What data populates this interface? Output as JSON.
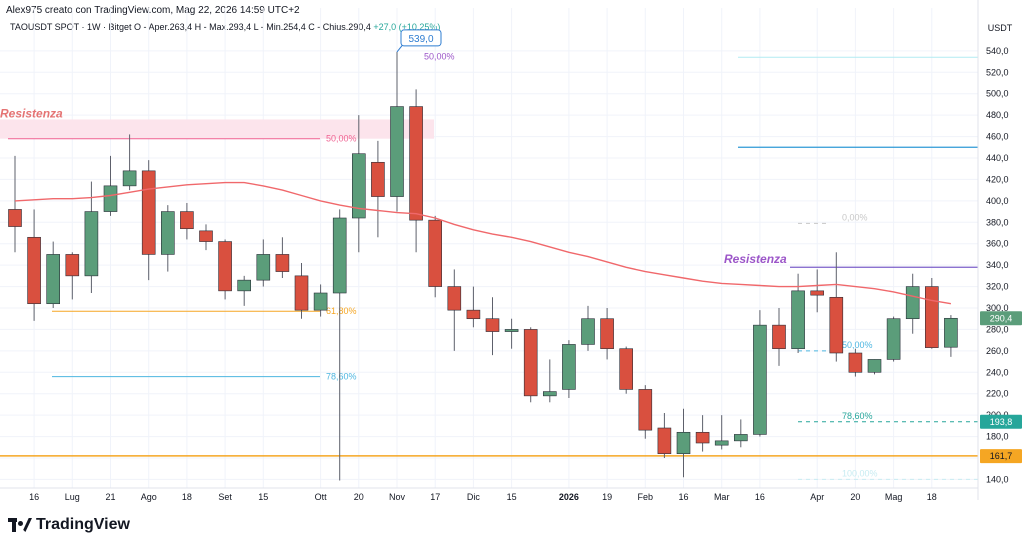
{
  "header": {
    "author_line": "Alex975 creato con TradingView.com, Mag 22, 2026 14:59 UTC+2",
    "symbol": "TAOUSDT SPOT · 1W · Bitget",
    "ohlc": "O - Aper.263,4  H - Max.293,4  L - Min.254,4  C - Chius.290,4",
    "change": "+27,0 (+10,25%)"
  },
  "price_axis": {
    "currency": "USDT"
  },
  "brand": {
    "name": "TradingView"
  },
  "colors": {
    "up": "#5b9d7a",
    "down": "#d9503f",
    "ma": "#f0686b",
    "accent_blue": "#2e7dd1"
  },
  "chart_data": {
    "type": "candlestick",
    "timeframe": "1W",
    "y_ticks": [
      140,
      160,
      180,
      200,
      220,
      240,
      260,
      280,
      300,
      320,
      340,
      360,
      380,
      400,
      420,
      440,
      460,
      480,
      500,
      520,
      540
    ],
    "y_labels": [
      "140,0",
      "160,0",
      "180,0",
      "200,0",
      "220,0",
      "240,0",
      "260,0",
      "280,0",
      "300,0",
      "320,0",
      "340,0",
      "360,0",
      "380,0",
      "400,0",
      "420,0",
      "440,0",
      "460,0",
      "480,0",
      "500,0",
      "520,0",
      "540,0"
    ],
    "ylim": [
      132,
      552
    ],
    "x_labels": [
      {
        "i": 1,
        "label": "16"
      },
      {
        "i": 3,
        "label": "Lug"
      },
      {
        "i": 5,
        "label": "21"
      },
      {
        "i": 7,
        "label": "Ago"
      },
      {
        "i": 9,
        "label": "18"
      },
      {
        "i": 11,
        "label": "Set"
      },
      {
        "i": 13,
        "label": "15"
      },
      {
        "i": 16,
        "label": "Ott"
      },
      {
        "i": 18,
        "label": "20"
      },
      {
        "i": 20,
        "label": "Nov"
      },
      {
        "i": 22,
        "label": "17"
      },
      {
        "i": 24,
        "label": "Dic"
      },
      {
        "i": 26,
        "label": "15"
      },
      {
        "i": 29,
        "label": "2026",
        "bold": true
      },
      {
        "i": 31,
        "label": "19"
      },
      {
        "i": 33,
        "label": "Feb"
      },
      {
        "i": 35,
        "label": "16"
      },
      {
        "i": 37,
        "label": "Mar"
      },
      {
        "i": 39,
        "label": "16"
      },
      {
        "i": 42,
        "label": "Apr"
      },
      {
        "i": 44,
        "label": "20"
      },
      {
        "i": 46,
        "label": "Mag"
      },
      {
        "i": 48,
        "label": "18"
      }
    ],
    "candles": [
      {
        "o": 392,
        "h": 442,
        "l": 352,
        "c": 376
      },
      {
        "o": 366,
        "h": 392,
        "l": 288,
        "c": 304
      },
      {
        "o": 304,
        "h": 362,
        "l": 300,
        "c": 350
      },
      {
        "o": 350,
        "h": 352,
        "l": 308,
        "c": 330
      },
      {
        "o": 330,
        "h": 418,
        "l": 314,
        "c": 390
      },
      {
        "o": 390,
        "h": 442,
        "l": 386,
        "c": 414
      },
      {
        "o": 414,
        "h": 462,
        "l": 410,
        "c": 428
      },
      {
        "o": 428,
        "h": 438,
        "l": 326,
        "c": 350
      },
      {
        "o": 350,
        "h": 396,
        "l": 334,
        "c": 390
      },
      {
        "o": 390,
        "h": 398,
        "l": 364,
        "c": 374
      },
      {
        "o": 372,
        "h": 378,
        "l": 354,
        "c": 362
      },
      {
        "o": 362,
        "h": 364,
        "l": 308,
        "c": 316
      },
      {
        "o": 316,
        "h": 330,
        "l": 302,
        "c": 326
      },
      {
        "o": 326,
        "h": 364,
        "l": 320,
        "c": 350
      },
      {
        "o": 350,
        "h": 366,
        "l": 328,
        "c": 334
      },
      {
        "o": 330,
        "h": 342,
        "l": 290,
        "c": 298
      },
      {
        "o": 298,
        "h": 322,
        "l": 292,
        "c": 314
      },
      {
        "o": 314,
        "h": 392,
        "l": 139,
        "c": 384
      },
      {
        "o": 384,
        "h": 480,
        "l": 352,
        "c": 444
      },
      {
        "o": 436,
        "h": 456,
        "l": 366,
        "c": 404
      },
      {
        "o": 404,
        "h": 539,
        "l": 390,
        "c": 488
      },
      {
        "o": 488,
        "h": 504,
        "l": 352,
        "c": 382
      },
      {
        "o": 382,
        "h": 386,
        "l": 310,
        "c": 320
      },
      {
        "o": 320,
        "h": 336,
        "l": 260,
        "c": 298
      },
      {
        "o": 298,
        "h": 320,
        "l": 282,
        "c": 290
      },
      {
        "o": 290,
        "h": 310,
        "l": 256,
        "c": 278
      },
      {
        "o": 278,
        "h": 290,
        "l": 262,
        "c": 280
      },
      {
        "o": 280,
        "h": 282,
        "l": 212,
        "c": 218
      },
      {
        "o": 218,
        "h": 252,
        "l": 212,
        "c": 222
      },
      {
        "o": 224,
        "h": 270,
        "l": 216,
        "c": 266
      },
      {
        "o": 266,
        "h": 302,
        "l": 260,
        "c": 290
      },
      {
        "o": 290,
        "h": 300,
        "l": 252,
        "c": 262
      },
      {
        "o": 262,
        "h": 264,
        "l": 220,
        "c": 224
      },
      {
        "o": 224,
        "h": 228,
        "l": 178,
        "c": 186
      },
      {
        "o": 188,
        "h": 202,
        "l": 160,
        "c": 164
      },
      {
        "o": 164,
        "h": 206,
        "l": 142,
        "c": 184
      },
      {
        "o": 184,
        "h": 200,
        "l": 166,
        "c": 174
      },
      {
        "o": 172,
        "h": 200,
        "l": 168,
        "c": 176
      },
      {
        "o": 176,
        "h": 196,
        "l": 170,
        "c": 182
      },
      {
        "o": 182,
        "h": 298,
        "l": 180,
        "c": 284
      },
      {
        "o": 284,
        "h": 300,
        "l": 246,
        "c": 262
      },
      {
        "o": 262,
        "h": 332,
        "l": 258,
        "c": 316
      },
      {
        "o": 316,
        "h": 336,
        "l": 296,
        "c": 312
      },
      {
        "o": 310,
        "h": 352,
        "l": 250,
        "c": 258
      },
      {
        "o": 258,
        "h": 262,
        "l": 236,
        "c": 240
      },
      {
        "o": 240,
        "h": 252,
        "l": 238,
        "c": 252
      },
      {
        "o": 252,
        "h": 292,
        "l": 250,
        "c": 290
      },
      {
        "o": 290,
        "h": 332,
        "l": 276,
        "c": 320
      },
      {
        "o": 320,
        "h": 328,
        "l": 262,
        "c": 263
      },
      {
        "o": 263.4,
        "h": 293.4,
        "l": 254.4,
        "c": 290.4
      }
    ],
    "moving_average": {
      "start_index": 0,
      "values": [
        400,
        401,
        402,
        402,
        403,
        405,
        408,
        411,
        413,
        415,
        416,
        417,
        417,
        414,
        410,
        405,
        400,
        396,
        393,
        391,
        389,
        388,
        384,
        378,
        373,
        369,
        366,
        362,
        357,
        352,
        348,
        343,
        338,
        334,
        331,
        328,
        325,
        323,
        322,
        321,
        320,
        320,
        321,
        322,
        320,
        318,
        315,
        311,
        307,
        304
      ]
    },
    "price_lines": [
      {
        "name": "res-top",
        "y": 534,
        "x1": 738,
        "x2": 978,
        "color": "#b2ebf2",
        "width": 1
      },
      {
        "name": "res-mid",
        "y": 450,
        "x1": 738,
        "x2": 978,
        "color": "#2e9ad6",
        "width": 1.3
      },
      {
        "name": "res-purple",
        "y": 338,
        "x1": 790,
        "x2": 978,
        "color": "#7b5fc9",
        "width": 1.2
      },
      {
        "name": "support-orange",
        "y": 162,
        "x1": 0,
        "x2": 978,
        "color": "#f5a623",
        "width": 1.5
      }
    ],
    "fib_left": {
      "levels": [
        {
          "y": 458,
          "label": "50,00%",
          "x1": 8,
          "x2": 320,
          "color": "#f06292",
          "text_x": 326
        },
        {
          "y": 297,
          "label": "61,80%",
          "x1": 52,
          "x2": 320,
          "color": "#f5a623",
          "text_x": 326
        },
        {
          "y": 236,
          "label": "78,60%",
          "x1": 52,
          "x2": 320,
          "color": "#4db6e0",
          "text_x": 326
        }
      ],
      "zone": {
        "y_top": 476,
        "y_bottom": 458,
        "x1": 0,
        "x2": 434,
        "fill": "#fce4ec"
      }
    },
    "fib_right": {
      "levels": [
        {
          "y": 379,
          "label": "0,00%",
          "x1": 798,
          "x2": 830,
          "color": "#c8c8c8",
          "text_x": 842
        },
        {
          "y": 260,
          "label": "50,00%",
          "x1": 798,
          "x2": 838,
          "color": "#4db6e0",
          "text_x": 842
        },
        {
          "y": 193.8,
          "label": "78,60%",
          "x1": 798,
          "x2": 978,
          "color": "#26a69a",
          "text_x": 842
        },
        {
          "y": 140,
          "label": "100,00%",
          "x1": 798,
          "x2": 978,
          "color": "#c8ecf2",
          "text_x": 842
        }
      ]
    },
    "annotations": [
      {
        "text": "Resistenza",
        "x": 0,
        "y": 478,
        "color": "#e57373",
        "style": "italic"
      },
      {
        "text": "Resistenza",
        "x": 724,
        "y": 342,
        "color": "#9c56c9",
        "style": "italic"
      },
      {
        "text": "50,00%",
        "x": 424,
        "y": 532,
        "color": "#9c56c9",
        "style": "normal"
      }
    ],
    "peak_callout": {
      "text": "539,0",
      "price": 539,
      "index": 20
    },
    "price_badges": [
      {
        "value": "290,4",
        "y": 290.4,
        "bg": "#5b9d7a",
        "fg": "#ffffff"
      },
      {
        "value": "193,8",
        "y": 193.8,
        "bg": "#26a69a",
        "fg": "#ffffff"
      },
      {
        "value": "161,7",
        "y": 161.7,
        "bg": "#f5a623",
        "fg": "#131722"
      }
    ]
  }
}
